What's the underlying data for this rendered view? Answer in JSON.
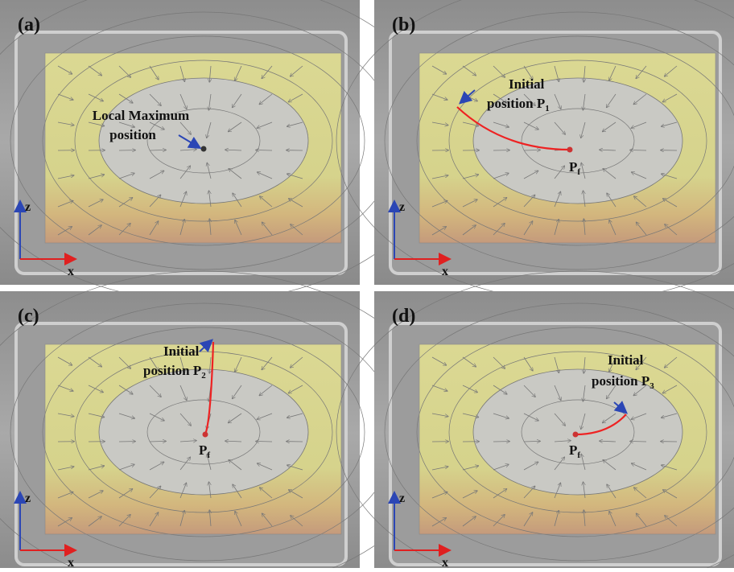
{
  "panels": [
    {
      "label": "(a)",
      "axes": {
        "z": "z",
        "x": "x"
      },
      "annotation": {
        "lines": [
          "Local Maximum",
          "position"
        ]
      }
    },
    {
      "label": "(b)",
      "axes": {
        "z": "z",
        "x": "x"
      },
      "annotation": {
        "line1": "Initial",
        "line2": "position P",
        "sub": "1"
      },
      "end_label": {
        "text": "P",
        "sub": "f"
      }
    },
    {
      "label": "(c)",
      "axes": {
        "z": "z",
        "x": "x"
      },
      "annotation": {
        "line1": "Initial",
        "line2": "position P",
        "sub": "2"
      },
      "end_label": {
        "text": "P",
        "sub": "f"
      }
    },
    {
      "label": "(d)",
      "axes": {
        "z": "z",
        "x": "x"
      },
      "annotation": {
        "line1": "Initial",
        "line2": "position P",
        "sub": "3"
      },
      "end_label": {
        "text": "P",
        "sub": "f"
      }
    }
  ]
}
